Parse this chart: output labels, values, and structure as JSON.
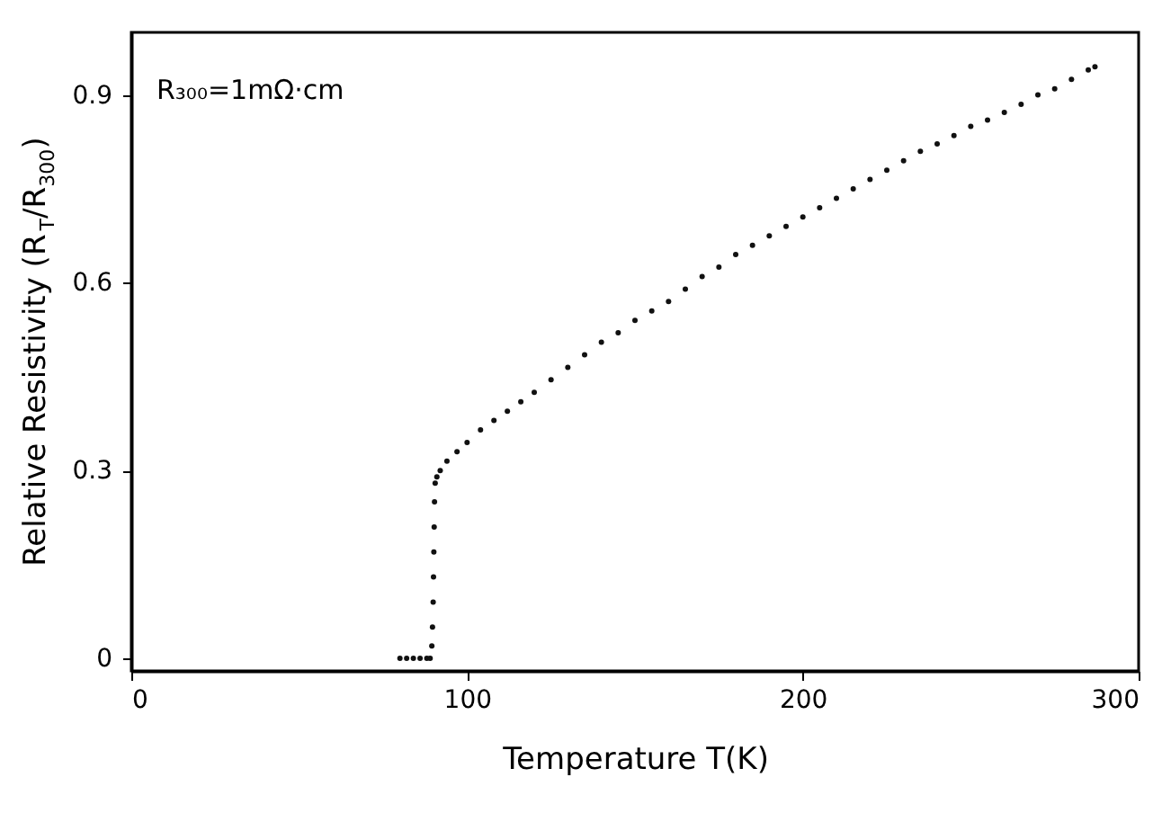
{
  "chart_data": {
    "type": "scatter",
    "xlabel": "Temperature T(K)",
    "ylabel": "Relative Resistivity (R$_{T}$/R$_{300}$)",
    "annotations": [
      "R₃₀₀=1mΩ·cm"
    ],
    "x": [
      80,
      82,
      84,
      86,
      88,
      89,
      89.5,
      89.7,
      89.9,
      90.0,
      90.1,
      90.2,
      90.3,
      90.5,
      91,
      92,
      94,
      97,
      100,
      104,
      108,
      112,
      116,
      120,
      125,
      130,
      135,
      140,
      145,
      150,
      155,
      160,
      165,
      170,
      175,
      180,
      185,
      190,
      195,
      200,
      205,
      210,
      215,
      220,
      225,
      230,
      235,
      240,
      245,
      250,
      255,
      260,
      265,
      270,
      275,
      280,
      285,
      287
    ],
    "series": [
      {
        "color": "#111111",
        "values": [
          0,
          0,
          0,
          0,
          0,
          0,
          0.02,
          0.05,
          0.09,
          0.13,
          0.17,
          0.21,
          0.25,
          0.28,
          0.29,
          0.3,
          0.315,
          0.33,
          0.345,
          0.365,
          0.38,
          0.395,
          0.41,
          0.425,
          0.445,
          0.465,
          0.485,
          0.505,
          0.52,
          0.54,
          0.555,
          0.57,
          0.59,
          0.61,
          0.625,
          0.645,
          0.66,
          0.675,
          0.69,
          0.705,
          0.72,
          0.735,
          0.75,
          0.765,
          0.78,
          0.795,
          0.81,
          0.822,
          0.835,
          0.85,
          0.86,
          0.872,
          0.885,
          0.9,
          0.91,
          0.925,
          0.94,
          0.945
        ]
      }
    ],
    "xlim": [
      0,
      300
    ],
    "xticks": [
      0,
      100,
      200,
      300
    ],
    "ylim": [
      -0.02,
      1.0
    ],
    "yticks": [
      0,
      0.3,
      0.6,
      0.9
    ],
    "marker": "circle",
    "grid": false
  }
}
